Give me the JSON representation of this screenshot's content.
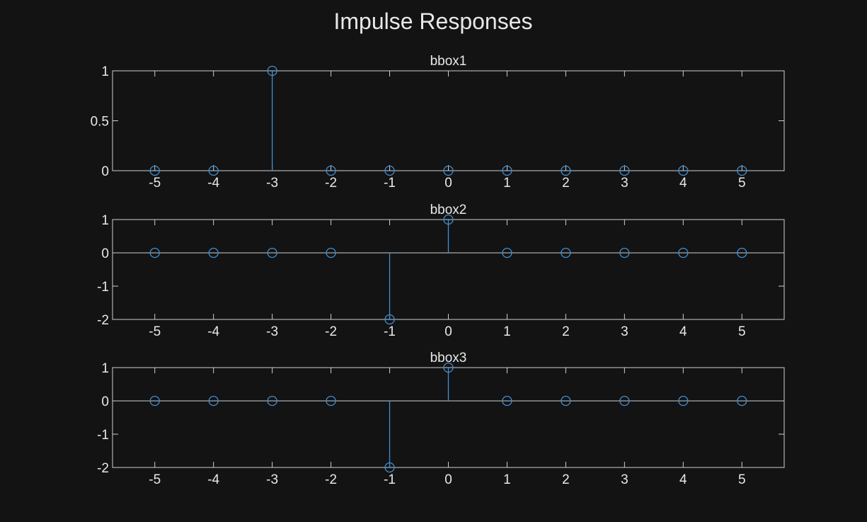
{
  "figure": {
    "title": "Impulse Responses"
  },
  "colors": {
    "background": "#131313",
    "axes": "#cfcfcf",
    "text": "#e8e8e8",
    "stem": "#3d8fd6"
  },
  "chart_data": [
    {
      "type": "stem",
      "title": "bbox1",
      "x": [
        -5,
        -4,
        -3,
        -2,
        -1,
        0,
        1,
        2,
        3,
        4,
        5
      ],
      "values": [
        0,
        0,
        1,
        0,
        0,
        0,
        0,
        0,
        0,
        0,
        0
      ],
      "xlim": [
        -5.72,
        5.72
      ],
      "ylim": [
        0,
        1
      ],
      "xticks": [
        -5,
        -4,
        -3,
        -2,
        -1,
        0,
        1,
        2,
        3,
        4,
        5
      ],
      "yticks": [
        0,
        0.5,
        1
      ],
      "yticklabels": [
        "0",
        "0.5",
        "1"
      ],
      "grid": false
    },
    {
      "type": "stem",
      "title": "bbox2",
      "x": [
        -5,
        -4,
        -3,
        -2,
        -1,
        0,
        1,
        2,
        3,
        4,
        5
      ],
      "values": [
        0,
        0,
        0,
        0,
        -2,
        1,
        0,
        0,
        0,
        0,
        0
      ],
      "xlim": [
        -5.72,
        5.72
      ],
      "ylim": [
        -2,
        1
      ],
      "xticks": [
        -5,
        -4,
        -3,
        -2,
        -1,
        0,
        1,
        2,
        3,
        4,
        5
      ],
      "yticks": [
        -2,
        -1,
        0,
        1
      ],
      "yticklabels": [
        "-2",
        "-1",
        "0",
        "1"
      ],
      "grid": false
    },
    {
      "type": "stem",
      "title": "bbox3",
      "x": [
        -5,
        -4,
        -3,
        -2,
        -1,
        0,
        1,
        2,
        3,
        4,
        5
      ],
      "values": [
        0,
        0,
        0,
        0,
        -2,
        1,
        0,
        0,
        0,
        0,
        0
      ],
      "xlim": [
        -5.72,
        5.72
      ],
      "ylim": [
        -2,
        1
      ],
      "xticks": [
        -5,
        -4,
        -3,
        -2,
        -1,
        0,
        1,
        2,
        3,
        4,
        5
      ],
      "yticks": [
        -2,
        -1,
        0,
        1
      ],
      "yticklabels": [
        "-2",
        "-1",
        "0",
        "1"
      ],
      "grid": false
    }
  ]
}
